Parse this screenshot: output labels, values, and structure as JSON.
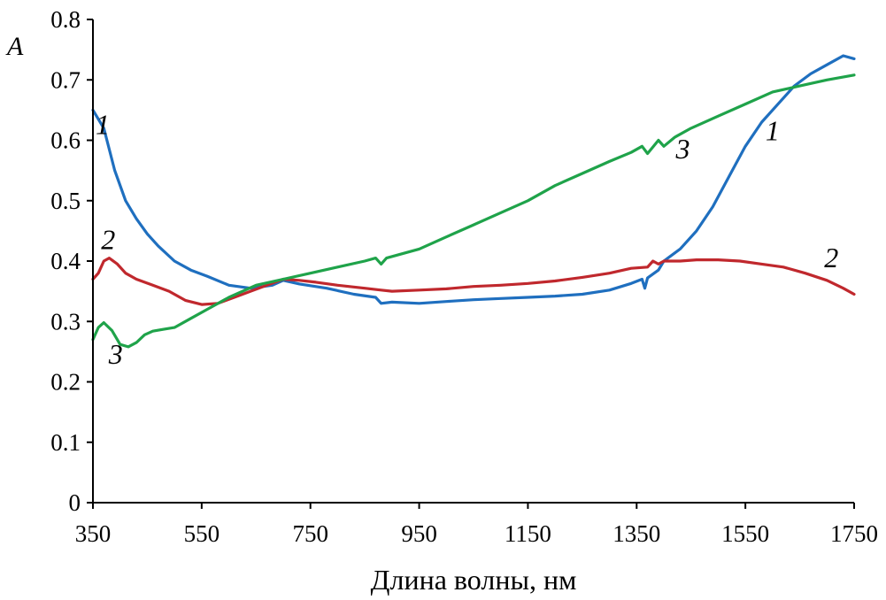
{
  "chart_data": {
    "type": "line",
    "title": "",
    "xlabel": "Длина волны, нм",
    "ylabel": "A",
    "xlim": [
      350,
      1750
    ],
    "ylim": [
      0,
      0.8
    ],
    "x_ticks": [
      "350",
      "550",
      "750",
      "950",
      "1150",
      "1350",
      "1550",
      "1750"
    ],
    "y_ticks": [
      "0",
      "0.1",
      "0.2",
      "0.3",
      "0.4",
      "0.5",
      "0.6",
      "0.7",
      "0.8"
    ],
    "grid": false,
    "legend": "none",
    "series": [
      {
        "name": "1",
        "color": "#1f6fbf",
        "points": [
          [
            350,
            0.65
          ],
          [
            370,
            0.62
          ],
          [
            390,
            0.55
          ],
          [
            410,
            0.5
          ],
          [
            430,
            0.47
          ],
          [
            450,
            0.445
          ],
          [
            470,
            0.425
          ],
          [
            500,
            0.4
          ],
          [
            530,
            0.385
          ],
          [
            560,
            0.375
          ],
          [
            600,
            0.36
          ],
          [
            640,
            0.355
          ],
          [
            680,
            0.36
          ],
          [
            700,
            0.368
          ],
          [
            730,
            0.362
          ],
          [
            780,
            0.355
          ],
          [
            830,
            0.345
          ],
          [
            870,
            0.34
          ],
          [
            880,
            0.33
          ],
          [
            900,
            0.332
          ],
          [
            950,
            0.33
          ],
          [
            1000,
            0.333
          ],
          [
            1050,
            0.336
          ],
          [
            1100,
            0.338
          ],
          [
            1150,
            0.34
          ],
          [
            1200,
            0.342
          ],
          [
            1250,
            0.345
          ],
          [
            1300,
            0.352
          ],
          [
            1340,
            0.363
          ],
          [
            1360,
            0.37
          ],
          [
            1365,
            0.355
          ],
          [
            1370,
            0.372
          ],
          [
            1390,
            0.385
          ],
          [
            1400,
            0.4
          ],
          [
            1430,
            0.42
          ],
          [
            1460,
            0.45
          ],
          [
            1490,
            0.49
          ],
          [
            1520,
            0.54
          ],
          [
            1550,
            0.59
          ],
          [
            1580,
            0.63
          ],
          [
            1610,
            0.66
          ],
          [
            1640,
            0.69
          ],
          [
            1670,
            0.71
          ],
          [
            1700,
            0.725
          ],
          [
            1730,
            0.74
          ],
          [
            1750,
            0.735
          ]
        ],
        "label_positions": [
          [
            368,
            0.61
          ],
          [
            1600,
            0.6
          ]
        ]
      },
      {
        "name": "2",
        "color": "#c0282d",
        "points": [
          [
            350,
            0.37
          ],
          [
            360,
            0.38
          ],
          [
            370,
            0.4
          ],
          [
            380,
            0.405
          ],
          [
            395,
            0.395
          ],
          [
            410,
            0.38
          ],
          [
            430,
            0.37
          ],
          [
            460,
            0.36
          ],
          [
            490,
            0.35
          ],
          [
            520,
            0.335
          ],
          [
            550,
            0.328
          ],
          [
            580,
            0.33
          ],
          [
            610,
            0.34
          ],
          [
            640,
            0.35
          ],
          [
            670,
            0.36
          ],
          [
            700,
            0.37
          ],
          [
            730,
            0.368
          ],
          [
            760,
            0.365
          ],
          [
            800,
            0.36
          ],
          [
            850,
            0.355
          ],
          [
            880,
            0.352
          ],
          [
            900,
            0.35
          ],
          [
            950,
            0.352
          ],
          [
            1000,
            0.354
          ],
          [
            1050,
            0.358
          ],
          [
            1100,
            0.36
          ],
          [
            1150,
            0.363
          ],
          [
            1200,
            0.367
          ],
          [
            1250,
            0.373
          ],
          [
            1300,
            0.38
          ],
          [
            1340,
            0.388
          ],
          [
            1370,
            0.39
          ],
          [
            1380,
            0.4
          ],
          [
            1390,
            0.395
          ],
          [
            1400,
            0.4
          ],
          [
            1430,
            0.4
          ],
          [
            1460,
            0.402
          ],
          [
            1500,
            0.402
          ],
          [
            1540,
            0.4
          ],
          [
            1580,
            0.395
          ],
          [
            1620,
            0.39
          ],
          [
            1660,
            0.38
          ],
          [
            1700,
            0.368
          ],
          [
            1730,
            0.355
          ],
          [
            1750,
            0.345
          ]
        ],
        "label_positions": [
          [
            378,
            0.42
          ],
          [
            1708,
            0.39
          ]
        ]
      },
      {
        "name": "3",
        "color": "#1fa34a",
        "points": [
          [
            350,
            0.27
          ],
          [
            360,
            0.29
          ],
          [
            370,
            0.298
          ],
          [
            385,
            0.285
          ],
          [
            400,
            0.262
          ],
          [
            415,
            0.258
          ],
          [
            430,
            0.265
          ],
          [
            445,
            0.278
          ],
          [
            460,
            0.284
          ],
          [
            480,
            0.287
          ],
          [
            500,
            0.29
          ],
          [
            530,
            0.305
          ],
          [
            560,
            0.32
          ],
          [
            600,
            0.34
          ],
          [
            650,
            0.36
          ],
          [
            700,
            0.37
          ],
          [
            750,
            0.38
          ],
          [
            800,
            0.39
          ],
          [
            850,
            0.4
          ],
          [
            870,
            0.405
          ],
          [
            880,
            0.395
          ],
          [
            890,
            0.405
          ],
          [
            950,
            0.42
          ],
          [
            1000,
            0.44
          ],
          [
            1050,
            0.46
          ],
          [
            1100,
            0.48
          ],
          [
            1150,
            0.5
          ],
          [
            1200,
            0.525
          ],
          [
            1250,
            0.545
          ],
          [
            1300,
            0.565
          ],
          [
            1340,
            0.58
          ],
          [
            1360,
            0.59
          ],
          [
            1370,
            0.578
          ],
          [
            1390,
            0.6
          ],
          [
            1400,
            0.59
          ],
          [
            1420,
            0.605
          ],
          [
            1450,
            0.62
          ],
          [
            1500,
            0.64
          ],
          [
            1550,
            0.66
          ],
          [
            1600,
            0.68
          ],
          [
            1650,
            0.69
          ],
          [
            1700,
            0.7
          ],
          [
            1750,
            0.708
          ]
        ],
        "label_positions": [
          [
            392,
            0.23
          ],
          [
            1435,
            0.57
          ]
        ]
      }
    ]
  }
}
